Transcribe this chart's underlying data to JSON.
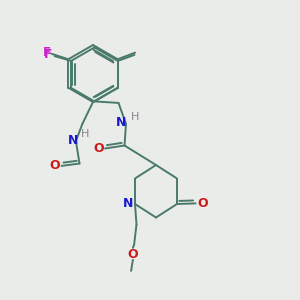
{
  "background_color": "#eaecea",
  "bond_color": "#4a7a6a",
  "bond_lw": 1.4,
  "N_color": "#1a1acc",
  "O_color": "#cc1a1a",
  "F_color": "#cc22cc",
  "H_color": "#888888",
  "figsize": [
    3.0,
    3.0
  ],
  "dpi": 100,
  "xlim": [
    0,
    10
  ],
  "ylim": [
    0,
    10
  ]
}
